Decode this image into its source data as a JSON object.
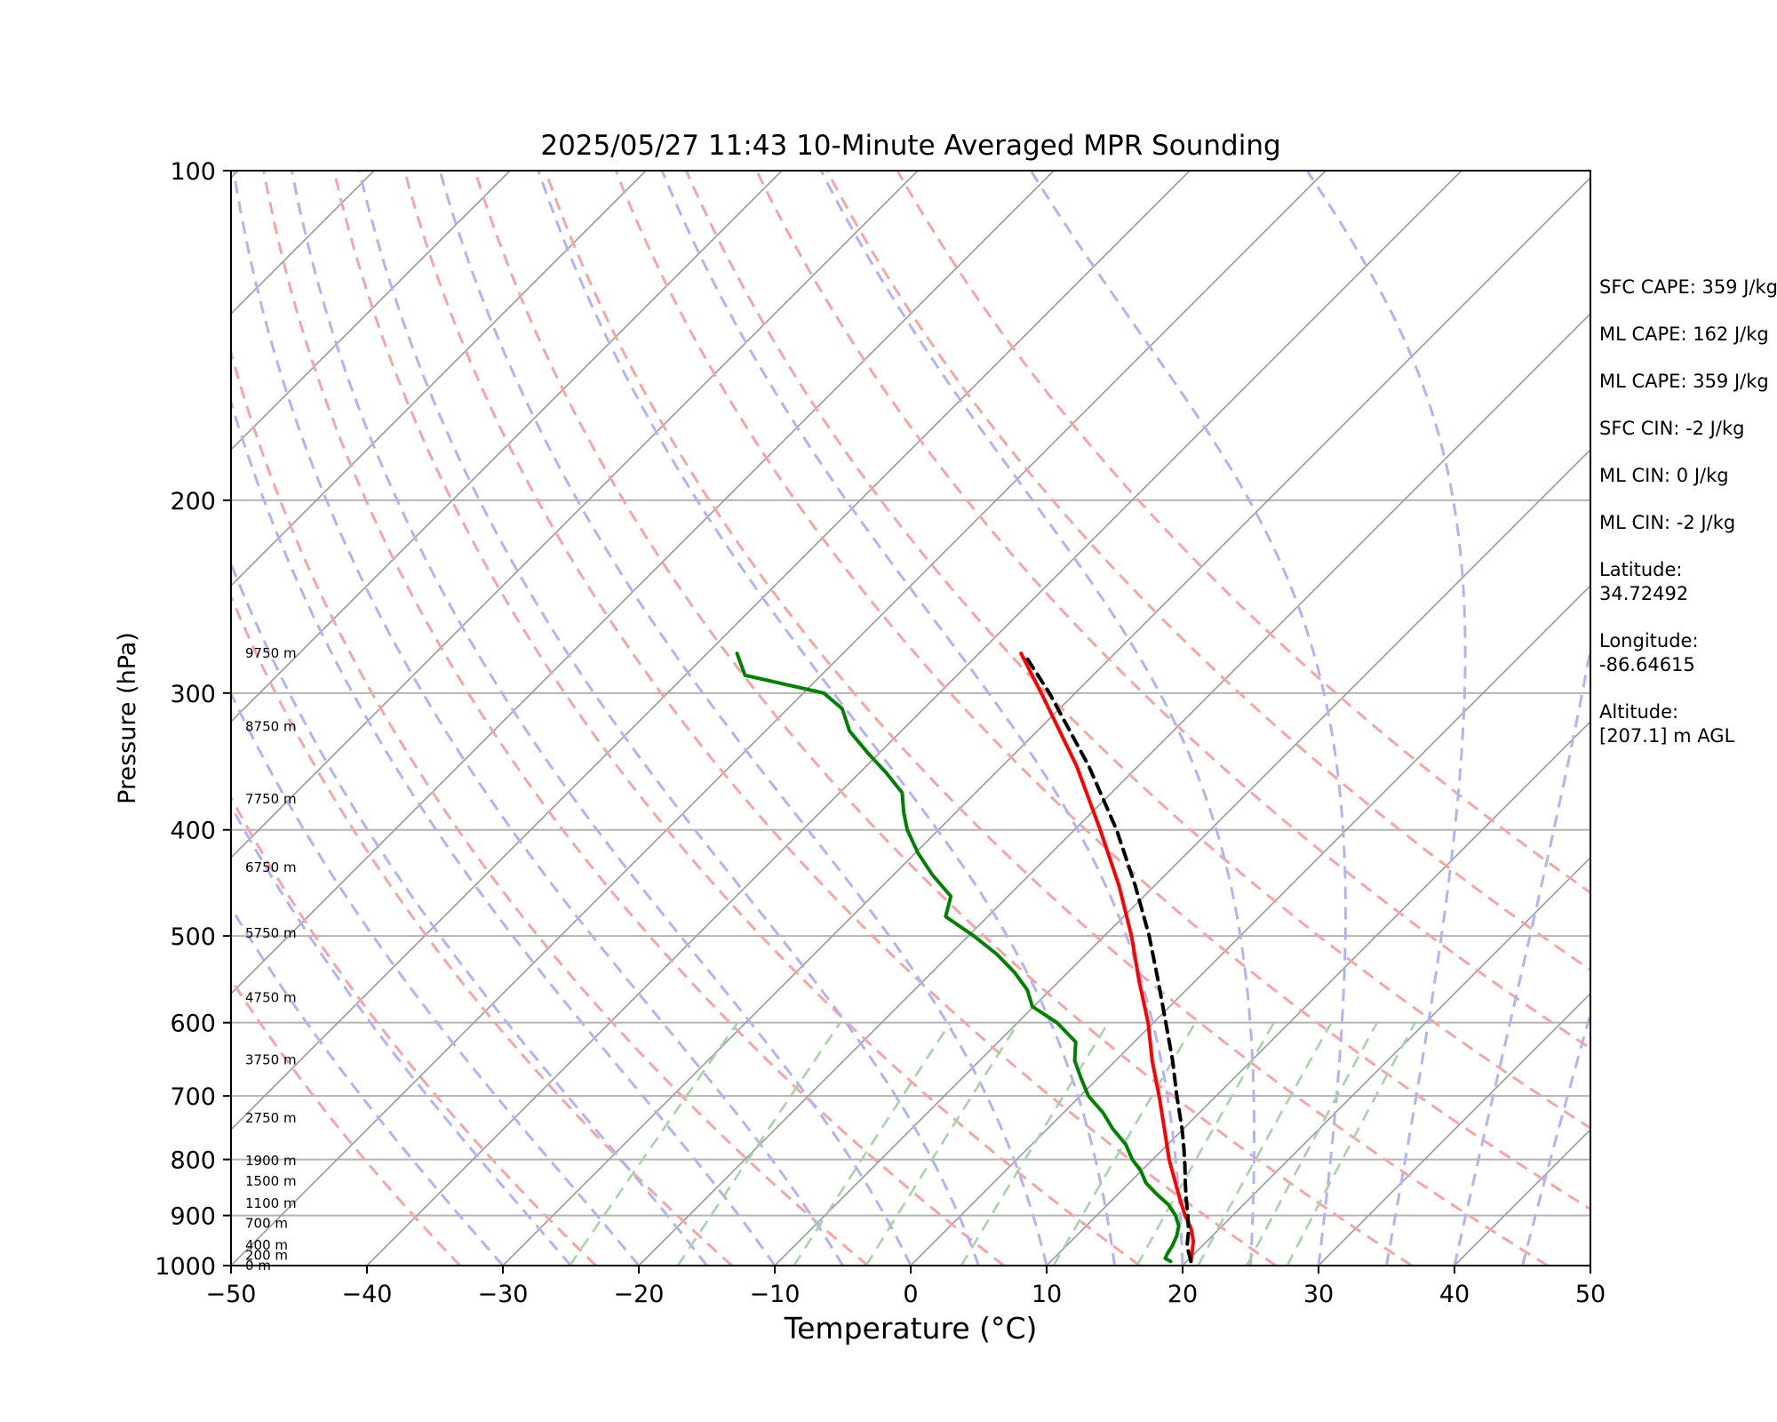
{
  "chart_data": {
    "type": "skew-t log-p",
    "title": "2025/05/27 11:43 10-Minute Averaged MPR Sounding",
    "xlabel": "Temperature (°C)",
    "ylabel": "Pressure (hPa)",
    "xlim": [
      -50,
      50
    ],
    "ylim": [
      1000,
      100
    ],
    "y_scale": "log",
    "x_ticks": [
      "−50",
      "−40",
      "−30",
      "−20",
      "−10",
      "0",
      "10",
      "20",
      "30",
      "40",
      "50"
    ],
    "y_ticks": [
      "1000",
      "900",
      "800",
      "700",
      "600",
      "500",
      "400",
      "300",
      "200",
      "100"
    ],
    "grid": true,
    "background_lines": {
      "isotherms": {
        "color": "#999999",
        "values_c": [
          -160,
          -150,
          -140,
          -130,
          -120,
          -110,
          -100,
          -90,
          -80,
          -70,
          -60,
          -50,
          -40,
          -30,
          -20,
          -10,
          0,
          10,
          20,
          30,
          40,
          50
        ]
      },
      "dry_adiabats": {
        "color": "#f4a6a6",
        "theta_k": [
          240,
          250,
          260,
          270,
          280,
          290,
          300,
          310,
          320,
          330,
          340,
          350,
          360,
          370
        ]
      },
      "moist_adiabats": {
        "color": "#b3b3f2",
        "start_temp_c": [
          -30,
          -25,
          -20,
          -15,
          -10,
          -5,
          0,
          5,
          10,
          15,
          20,
          25,
          30,
          35,
          40,
          45
        ]
      },
      "mixing_ratio_lines": {
        "color": "#a7d3a7",
        "g_per_kg": [
          0.5,
          1,
          2,
          3,
          5,
          8,
          12,
          16,
          20,
          24
        ]
      }
    },
    "height_labels": [
      {
        "pressure": 1000,
        "label": "0 m"
      },
      {
        "pressure": 979,
        "label": "200 m"
      },
      {
        "pressure": 958,
        "label": "400 m"
      },
      {
        "pressure": 915,
        "label": "700 m"
      },
      {
        "pressure": 877,
        "label": "1100 m"
      },
      {
        "pressure": 837,
        "label": "1500 m"
      },
      {
        "pressure": 802,
        "label": "1900 m"
      },
      {
        "pressure": 733,
        "label": "2750 m"
      },
      {
        "pressure": 649,
        "label": "3750 m"
      },
      {
        "pressure": 569,
        "label": "4750 m"
      },
      {
        "pressure": 497,
        "label": "5750 m"
      },
      {
        "pressure": 433,
        "label": "6750 m"
      },
      {
        "pressure": 375,
        "label": "7750 m"
      },
      {
        "pressure": 322,
        "label": "8750 m"
      },
      {
        "pressure": 276,
        "label": "9750 m"
      }
    ],
    "series": [
      {
        "role": "temperature",
        "color": "#ff0000",
        "dash": "solid",
        "pressure": [
          991,
          975,
          950,
          925,
          900,
          875,
          850,
          800,
          750,
          700,
          650,
          600,
          550,
          500,
          450,
          400,
          350,
          300,
          276
        ],
        "temperature": [
          20.3,
          19.8,
          19.0,
          17.9,
          16.5,
          15.2,
          13.9,
          11.2,
          8.6,
          5.8,
          2.7,
          -0.4,
          -4.1,
          -8.0,
          -12.6,
          -18.1,
          -24.5,
          -32.5,
          -36.9
        ]
      },
      {
        "role": "dewpoint",
        "color": "#008000",
        "dash": "solid",
        "pressure": [
          991,
          985,
          975,
          960,
          940,
          920,
          900,
          880,
          860,
          840,
          820,
          800,
          775,
          750,
          725,
          700,
          675,
          650,
          625,
          600,
          580,
          560,
          540,
          520,
          500,
          480,
          460,
          440,
          420,
          400,
          385,
          370,
          355,
          340,
          325,
          310,
          300,
          289,
          276
        ],
        "dewpoint": [
          18.8,
          18.2,
          18.0,
          17.8,
          17.4,
          16.8,
          15.8,
          14.5,
          12.8,
          11.2,
          10.0,
          8.5,
          6.9,
          4.8,
          2.9,
          0.6,
          -1.2,
          -3.0,
          -4.3,
          -7.1,
          -10.1,
          -11.7,
          -13.9,
          -16.5,
          -19.6,
          -23.1,
          -24.2,
          -27.1,
          -29.8,
          -32.3,
          -33.9,
          -35.4,
          -38.0,
          -40.9,
          -43.8,
          -46.0,
          -48.5,
          -55.6,
          -57.8
        ]
      },
      {
        "role": "parcel-profile",
        "color": "#000000",
        "dash": "dashed",
        "pressure": [
          991,
          960,
          930,
          900,
          870,
          840,
          810,
          780,
          750,
          700,
          650,
          600,
          550,
          500,
          450,
          400,
          350,
          300,
          276
        ],
        "temperature": [
          20.3,
          18.9,
          17.9,
          16.7,
          15.4,
          14.1,
          12.8,
          11.4,
          9.9,
          7.1,
          4.2,
          0.9,
          -2.7,
          -6.7,
          -11.4,
          -16.9,
          -23.6,
          -31.9,
          -36.7
        ]
      }
    ]
  },
  "side_panel": {
    "sfc_cape": "SFC CAPE: 359 J/kg",
    "ml_cape_1": "ML CAPE: 162 J/kg",
    "ml_cape_2": "ML CAPE: 359 J/kg",
    "sfc_cin": "SFC CIN: -2 J/kg",
    "ml_cin_1": "ML CIN: 0 J/kg",
    "ml_cin_2": "ML CIN: -2 J/kg",
    "latitude_label": "Latitude:",
    "latitude_value": "34.72492",
    "longitude_label": "Longitude:",
    "longitude_value": "-86.64615",
    "altitude_label": "Altitude:",
    "altitude_value": "[207.1] m AGL"
  }
}
